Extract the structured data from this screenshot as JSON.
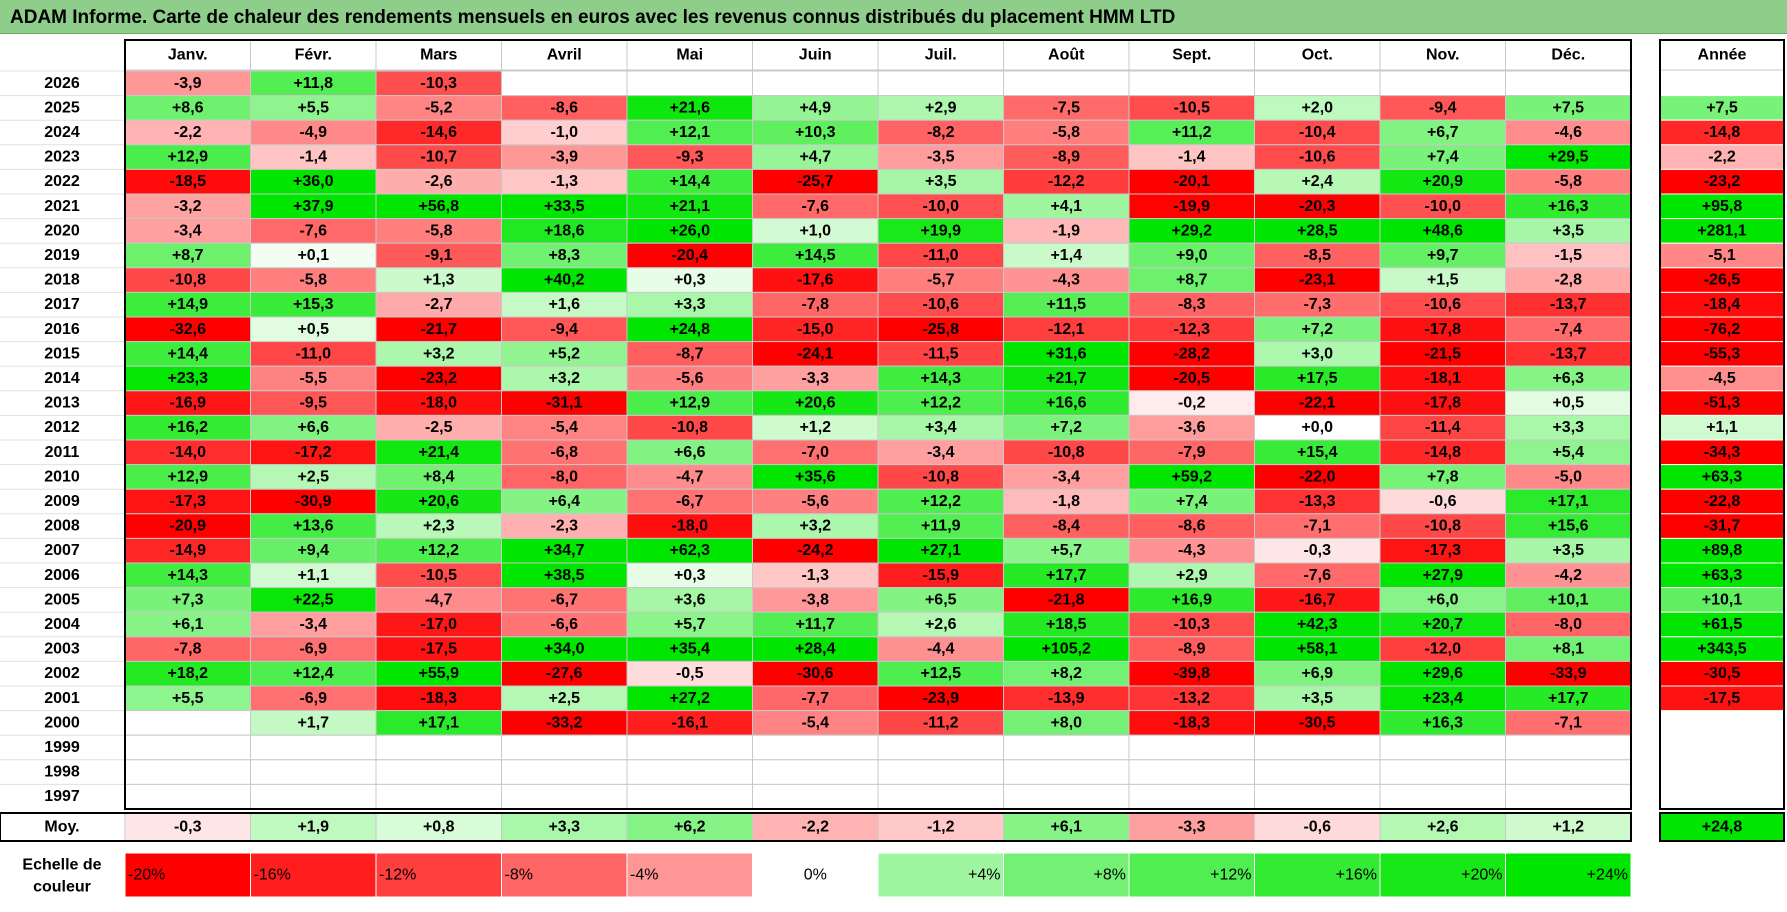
{
  "title": "ADAM Informe. Carte de chaleur des rendements mensuels en euros avec les revenus connus distribués du placement HMM LTD",
  "chart_data": {
    "type": "heatmap",
    "months": [
      "Janv.",
      "Févr.",
      "Mars",
      "Avril",
      "Mai",
      "Juin",
      "Juil.",
      "Août",
      "Sept.",
      "Oct.",
      "Nov.",
      "Déc."
    ],
    "year_header": "Année",
    "rows": [
      {
        "year": "2026",
        "values": [
          "-3,9",
          "+11,8",
          "-10,3",
          "",
          "",
          "",
          "",
          "",
          "",
          "",
          "",
          ""
        ],
        "annual": ""
      },
      {
        "year": "2025",
        "values": [
          "+8,6",
          "+5,5",
          "-5,2",
          "-8,6",
          "+21,6",
          "+4,9",
          "+2,9",
          "-7,5",
          "-10,5",
          "+2,0",
          "-9,4",
          "+7,5"
        ],
        "annual": "+7,5"
      },
      {
        "year": "2024",
        "values": [
          "-2,2",
          "-4,9",
          "-14,6",
          "-1,0",
          "+12,1",
          "+10,3",
          "-8,2",
          "-5,8",
          "+11,2",
          "-10,4",
          "+6,7",
          "-4,6"
        ],
        "annual": "-14,8"
      },
      {
        "year": "2023",
        "values": [
          "+12,9",
          "-1,4",
          "-10,7",
          "-3,9",
          "-9,3",
          "+4,7",
          "-3,5",
          "-8,9",
          "-1,4",
          "-10,6",
          "+7,4",
          "+29,5"
        ],
        "annual": "-2,2"
      },
      {
        "year": "2022",
        "values": [
          "-18,5",
          "+36,0",
          "-2,6",
          "-1,3",
          "+14,4",
          "-25,7",
          "+3,5",
          "-12,2",
          "-20,1",
          "+2,4",
          "+20,9",
          "-5,8"
        ],
        "annual": "-23,2"
      },
      {
        "year": "2021",
        "values": [
          "-3,2",
          "+37,9",
          "+56,8",
          "+33,5",
          "+21,1",
          "-7,6",
          "-10,0",
          "+4,1",
          "-19,9",
          "-20,3",
          "-10,0",
          "+16,3"
        ],
        "annual": "+95,8"
      },
      {
        "year": "2020",
        "values": [
          "-3,4",
          "-7,6",
          "-5,8",
          "+18,6",
          "+26,0",
          "+1,0",
          "+19,9",
          "-1,9",
          "+29,2",
          "+28,5",
          "+48,6",
          "+3,5"
        ],
        "annual": "+281,1"
      },
      {
        "year": "2019",
        "values": [
          "+8,7",
          "+0,1",
          "-9,1",
          "+8,3",
          "-20,4",
          "+14,5",
          "-11,0",
          "+1,4",
          "+9,0",
          "-8,5",
          "+9,7",
          "-1,5"
        ],
        "annual": "-5,1"
      },
      {
        "year": "2018",
        "values": [
          "-10,8",
          "-5,8",
          "+1,3",
          "+40,2",
          "+0,3",
          "-17,6",
          "-5,7",
          "-4,3",
          "+8,7",
          "-23,1",
          "+1,5",
          "-2,8"
        ],
        "annual": "-26,5"
      },
      {
        "year": "2017",
        "values": [
          "+14,9",
          "+15,3",
          "-2,7",
          "+1,6",
          "+3,3",
          "-7,8",
          "-10,6",
          "+11,5",
          "-8,3",
          "-7,3",
          "-10,6",
          "-13,7"
        ],
        "annual": "-18,4"
      },
      {
        "year": "2016",
        "values": [
          "-32,6",
          "+0,5",
          "-21,7",
          "-9,4",
          "+24,8",
          "-15,0",
          "-25,8",
          "-12,1",
          "-12,3",
          "+7,2",
          "-17,8",
          "-7,4"
        ],
        "annual": "-76,2"
      },
      {
        "year": "2015",
        "values": [
          "+14,4",
          "-11,0",
          "+3,2",
          "+5,2",
          "-8,7",
          "-24,1",
          "-11,5",
          "+31,6",
          "-28,2",
          "+3,0",
          "-21,5",
          "-13,7"
        ],
        "annual": "-55,3"
      },
      {
        "year": "2014",
        "values": [
          "+23,3",
          "-5,5",
          "-23,2",
          "+3,2",
          "-5,6",
          "-3,3",
          "+14,3",
          "+21,7",
          "-20,5",
          "+17,5",
          "-18,1",
          "+6,3"
        ],
        "annual": "-4,5"
      },
      {
        "year": "2013",
        "values": [
          "-16,9",
          "-9,5",
          "-18,0",
          "-31,1",
          "+12,9",
          "+20,6",
          "+12,2",
          "+16,6",
          "-0,2",
          "-22,1",
          "-17,8",
          "+0,5"
        ],
        "annual": "-51,3"
      },
      {
        "year": "2012",
        "values": [
          "+16,2",
          "+6,6",
          "-2,5",
          "-5,4",
          "-10,8",
          "+1,2",
          "+3,4",
          "+7,2",
          "-3,6",
          "+0,0",
          "-11,4",
          "+3,3"
        ],
        "annual": "+1,1"
      },
      {
        "year": "2011",
        "values": [
          "-14,0",
          "-17,2",
          "+21,4",
          "-6,8",
          "+6,6",
          "-7,0",
          "-3,4",
          "-10,8",
          "-7,9",
          "+15,4",
          "-14,8",
          "+5,4"
        ],
        "annual": "-34,3"
      },
      {
        "year": "2010",
        "values": [
          "+12,9",
          "+2,5",
          "+8,4",
          "-8,0",
          "-4,7",
          "+35,6",
          "-10,8",
          "-3,4",
          "+59,2",
          "-22,0",
          "+7,8",
          "-5,0"
        ],
        "annual": "+63,3"
      },
      {
        "year": "2009",
        "values": [
          "-17,3",
          "-30,9",
          "+20,6",
          "+6,4",
          "-6,7",
          "-5,6",
          "+12,2",
          "-1,8",
          "+7,4",
          "-13,3",
          "-0,6",
          "+17,1"
        ],
        "annual": "-22,8"
      },
      {
        "year": "2008",
        "values": [
          "-20,9",
          "+13,6",
          "+2,3",
          "-2,3",
          "-18,0",
          "+3,2",
          "+11,9",
          "-8,4",
          "-8,6",
          "-7,1",
          "-10,8",
          "+15,6"
        ],
        "annual": "-31,7"
      },
      {
        "year": "2007",
        "values": [
          "-14,9",
          "+9,4",
          "+12,2",
          "+34,7",
          "+62,3",
          "-24,2",
          "+27,1",
          "+5,7",
          "-4,3",
          "-0,3",
          "-17,3",
          "+3,5"
        ],
        "annual": "+89,8"
      },
      {
        "year": "2006",
        "values": [
          "+14,3",
          "+1,1",
          "-10,5",
          "+38,5",
          "+0,3",
          "-1,3",
          "-15,9",
          "+17,7",
          "+2,9",
          "-7,6",
          "+27,9",
          "-4,2"
        ],
        "annual": "+63,3"
      },
      {
        "year": "2005",
        "values": [
          "+7,3",
          "+22,5",
          "-4,7",
          "-6,7",
          "+3,6",
          "-3,8",
          "+6,5",
          "-21,8",
          "+16,9",
          "-16,7",
          "+6,0",
          "+10,1"
        ],
        "annual": "+10,1"
      },
      {
        "year": "2004",
        "values": [
          "+6,1",
          "-3,4",
          "-17,0",
          "-6,6",
          "+5,7",
          "+11,7",
          "+2,6",
          "+18,5",
          "-10,3",
          "+42,3",
          "+20,7",
          "-8,0"
        ],
        "annual": "+61,5"
      },
      {
        "year": "2003",
        "values": [
          "-7,8",
          "-6,9",
          "-17,5",
          "+34,0",
          "+35,4",
          "+28,4",
          "-4,4",
          "+105,2",
          "-8,9",
          "+58,1",
          "-12,0",
          "+8,1"
        ],
        "annual": "+343,5"
      },
      {
        "year": "2002",
        "values": [
          "+18,2",
          "+12,4",
          "+55,9",
          "-27,6",
          "-0,5",
          "-30,6",
          "+12,5",
          "+8,2",
          "-39,8",
          "+6,9",
          "+29,6",
          "-33,9"
        ],
        "annual": "-30,5"
      },
      {
        "year": "2001",
        "values": [
          "+5,5",
          "-6,9",
          "-18,3",
          "+2,5",
          "+27,2",
          "-7,7",
          "-23,9",
          "-13,9",
          "-13,2",
          "+3,5",
          "+23,4",
          "+17,7"
        ],
        "annual": "-17,5"
      },
      {
        "year": "2000",
        "values": [
          "",
          "+1,7",
          "+17,1",
          "-33,2",
          "-16,1",
          "-5,4",
          "-11,2",
          "+8,0",
          "-18,3",
          "-30,5",
          "+16,3",
          "-7,1"
        ],
        "annual": ""
      },
      {
        "year": "1999",
        "values": [
          "",
          "",
          "",
          "",
          "",
          "",
          "",
          "",
          "",
          "",
          "",
          ""
        ],
        "annual": ""
      },
      {
        "year": "1998",
        "values": [
          "",
          "",
          "",
          "",
          "",
          "",
          "",
          "",
          "",
          "",
          "",
          ""
        ],
        "annual": ""
      },
      {
        "year": "1997",
        "values": [
          "",
          "",
          "",
          "",
          "",
          "",
          "",
          "",
          "",
          "",
          "",
          ""
        ],
        "annual": ""
      }
    ],
    "average": {
      "label": "Moy.",
      "values": [
        "-0,3",
        "+1,9",
        "+0,8",
        "+3,3",
        "+6,2",
        "-2,2",
        "-1,2",
        "+6,1",
        "-3,3",
        "-0,6",
        "+2,6",
        "+1,2"
      ],
      "annual": "+24,8"
    },
    "scale": {
      "label_line1": "Echelle de",
      "label_line2": "couleur",
      "steps": [
        {
          "label": "-20%",
          "value": -20
        },
        {
          "label": "-16%",
          "value": -16
        },
        {
          "label": "-12%",
          "value": -12
        },
        {
          "label": "-8%",
          "value": -8
        },
        {
          "label": "-4%",
          "value": -4
        },
        {
          "label": "0%",
          "value": 0
        },
        {
          "label": "+4%",
          "value": 4
        },
        {
          "label": "+8%",
          "value": 8
        },
        {
          "label": "+12%",
          "value": 12
        },
        {
          "label": "+16%",
          "value": 16
        },
        {
          "label": "+20%",
          "value": 20
        },
        {
          "label": "+24%",
          "value": 24
        }
      ]
    },
    "colors": {
      "negative_full": "#ff0000",
      "positive_full": "#00e600",
      "neutral": "#ffffff",
      "title_bg": "#8fce8a",
      "grid": "#c8c8c8",
      "border": "#000000"
    }
  }
}
